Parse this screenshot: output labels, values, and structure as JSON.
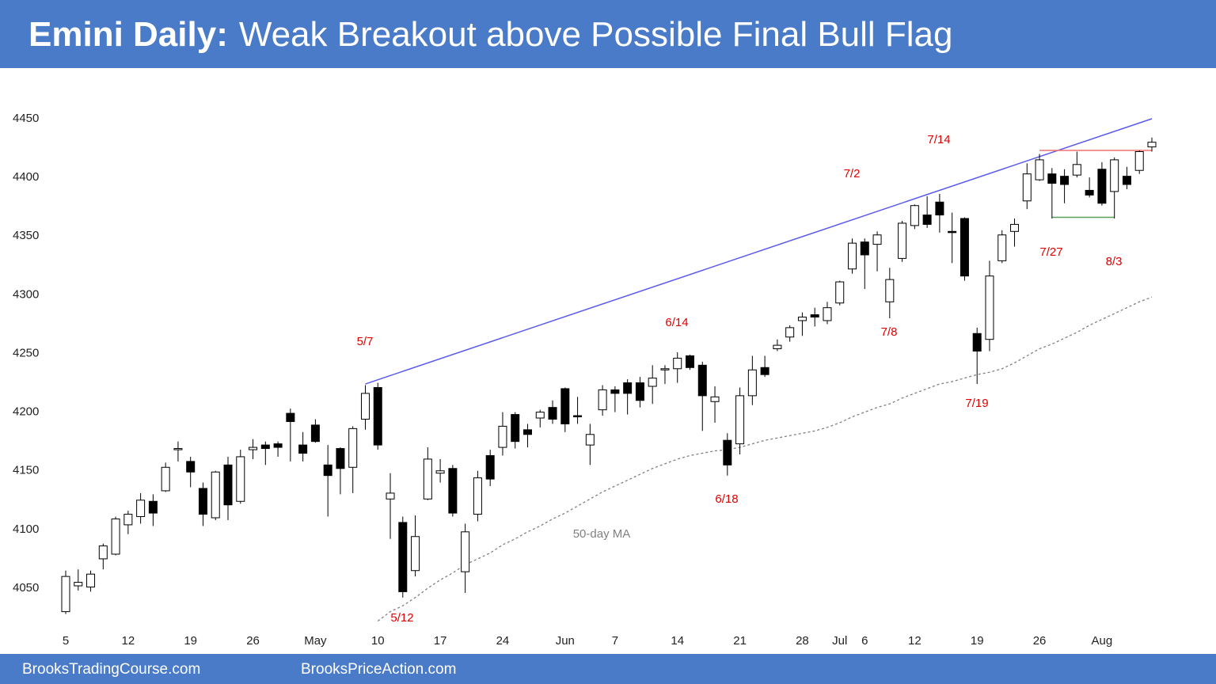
{
  "chart_data": {
    "type": "candlestick",
    "title": "Emini Daily:",
    "subtitle": "Weak Breakout above Possible Final Bull Flag",
    "categories": [
      "5",
      null,
      null,
      null,
      null,
      "12",
      null,
      null,
      null,
      null,
      "19",
      null,
      null,
      null,
      null,
      "26",
      null,
      null,
      null,
      null,
      "May",
      null,
      null,
      null,
      null,
      "10",
      null,
      null,
      null,
      null,
      "17",
      null,
      null,
      null,
      null,
      "24",
      null,
      null,
      null,
      null,
      "Jun",
      null,
      null,
      null,
      "7",
      null,
      null,
      null,
      null,
      "14",
      null,
      null,
      null,
      null,
      "21",
      null,
      null,
      null,
      null,
      "28",
      null,
      null,
      "Jul",
      null,
      "6",
      null,
      null,
      null,
      "12",
      null,
      null,
      null,
      null,
      "19",
      null,
      null,
      null,
      null,
      "26",
      null,
      null,
      null,
      null,
      "Aug",
      null,
      null,
      null,
      null
    ],
    "open": [
      4030,
      4052,
      4051,
      4075,
      4079,
      4104,
      4111,
      4124,
      4133,
      4168,
      4158,
      4135,
      4110,
      4155,
      4124,
      4168,
      4172,
      4173,
      4199,
      4172,
      4189,
      4155,
      4169,
      4153,
      4194,
      4221,
      4126,
      4106,
      4065,
      4126,
      4148,
      4152,
      4064,
      4113,
      4163,
      4170,
      4198,
      4185,
      4195,
      4204,
      4220,
      4197,
      4172,
      4202,
      4219,
      4225,
      4225,
      4222,
      4236,
      4237,
      4248,
      4240,
      4209,
      4176,
      4173,
      4214,
      4238,
      4254,
      4264,
      4278,
      4283,
      4278,
      4293,
      4322,
      4345,
      4343,
      4294,
      4331,
      4359,
      4368,
      4379,
      4354,
      4365,
      4267,
      4262,
      4329,
      4354,
      4380,
      4398,
      4403,
      4401,
      4402,
      4389,
      4407,
      4388,
      4401,
      4406,
      4426
    ],
    "high": [
      4065,
      4066,
      4065,
      4088,
      4111,
      4116,
      4131,
      4130,
      4157,
      4175,
      4162,
      4140,
      4150,
      4162,
      4168,
      4177,
      4175,
      4175,
      4203,
      4183,
      4194,
      4172,
      4170,
      4188,
      4223,
      4225,
      4148,
      4111,
      4112,
      4170,
      4160,
      4155,
      4105,
      4150,
      4168,
      4200,
      4200,
      4190,
      4202,
      4210,
      4221,
      4213,
      4190,
      4223,
      4222,
      4228,
      4230,
      4240,
      4240,
      4251,
      4249,
      4243,
      4222,
      4182,
      4221,
      4248,
      4248,
      4262,
      4274,
      4285,
      4289,
      4294,
      4312,
      4348,
      4348,
      4354,
      4323,
      4363,
      4377,
      4384,
      4386,
      4370,
      4366,
      4272,
      4329,
      4355,
      4365,
      4412,
      4420,
      4408,
      4407,
      4422,
      4400,
      4413,
      4417,
      4409,
      4423,
      4434
    ],
    "low": [
      4028,
      4048,
      4047,
      4066,
      4078,
      4096,
      4105,
      4103,
      4132,
      4158,
      4136,
      4103,
      4108,
      4108,
      4122,
      4160,
      4155,
      4162,
      4158,
      4158,
      4174,
      4111,
      4130,
      4131,
      4185,
      4168,
      4092,
      4042,
      4060,
      4125,
      4140,
      4111,
      4046,
      4107,
      4137,
      4163,
      4169,
      4170,
      4187,
      4190,
      4183,
      4190,
      4155,
      4197,
      4200,
      4198,
      4204,
      4207,
      4224,
      4225,
      4236,
      4184,
      4191,
      4146,
      4164,
      4206,
      4230,
      4252,
      4260,
      4265,
      4273,
      4275,
      4291,
      4318,
      4305,
      4320,
      4280,
      4328,
      4356,
      4357,
      4353,
      4327,
      4312,
      4224,
      4252,
      4327,
      4341,
      4373,
      4397,
      4365,
      4378,
      4400,
      4383,
      4376,
      4365,
      4390,
      4403,
      4422
    ],
    "close": [
      4060,
      4055,
      4062,
      4086,
      4109,
      4113,
      4125,
      4114,
      4153,
      4169,
      4149,
      4113,
      4149,
      4121,
      4162,
      4170,
      4169,
      4170,
      4192,
      4165,
      4175,
      4146,
      4152,
      4186,
      4216,
      4172,
      4131,
      4047,
      4094,
      4160,
      4150,
      4114,
      4098,
      4144,
      4143,
      4188,
      4175,
      4181,
      4200,
      4194,
      4190,
      4196,
      4181,
      4219,
      4216,
      4216,
      4210,
      4229,
      4237,
      4246,
      4238,
      4214,
      4213,
      4155,
      4214,
      4236,
      4232,
      4257,
      4272,
      4281,
      4281,
      4289,
      4311,
      4344,
      4334,
      4351,
      4313,
      4361,
      4376,
      4360,
      4368,
      4353,
      4316,
      4252,
      4316,
      4351,
      4360,
      4403,
      4415,
      4395,
      4394,
      4411,
      4385,
      4378,
      4415,
      4394,
      4422,
      4430
    ],
    "ma": {
      "name": "50-day MA",
      "color": "#808080",
      "values": [
        null,
        null,
        null,
        null,
        null,
        null,
        null,
        null,
        null,
        null,
        null,
        null,
        null,
        null,
        null,
        null,
        null,
        null,
        null,
        null,
        null,
        null,
        null,
        null,
        null,
        4022,
        4030,
        4035,
        4042,
        4050,
        4057,
        4063,
        4070,
        4075,
        4080,
        4087,
        4092,
        4098,
        4103,
        4109,
        4114,
        4120,
        4126,
        4132,
        4137,
        4142,
        4147,
        4152,
        4156,
        4160,
        4163,
        4165,
        4167,
        4168,
        4170,
        4173,
        4176,
        4178,
        4180,
        4182,
        4184,
        4187,
        4191,
        4196,
        4200,
        4204,
        4207,
        4212,
        4216,
        4220,
        4224,
        4226,
        4229,
        4232,
        4234,
        4237,
        4242,
        4248,
        4254,
        4258,
        4263,
        4268,
        4274,
        4279,
        4284,
        4289,
        4294,
        4298
      ]
    },
    "lines": [
      {
        "color": "#5a5af0",
        "x": [
          24,
          87
        ],
        "values": [
          4224,
          4450
        ]
      },
      {
        "color": "#f07070",
        "x": [
          78,
          87
        ],
        "values": [
          4423,
          4423
        ]
      },
      {
        "color": "#5aa05a",
        "x": [
          79,
          84
        ],
        "values": [
          4366,
          4366
        ]
      }
    ],
    "annotations": [
      "5/7",
      "5/12",
      "6/14",
      "6/18",
      "7/2",
      "7/8",
      "7/14",
      "7/19",
      "7/27",
      "8/3"
    ],
    "annotation_color": "#e00000",
    "ylim": [
      4012,
      4484
    ],
    "yticks": [
      4050,
      4100,
      4150,
      4200,
      4250,
      4300,
      4350,
      4400,
      4450
    ],
    "grid": false
  },
  "footer": [
    "BrooksTradingCourse.com",
    "BrooksPriceAction.com"
  ]
}
